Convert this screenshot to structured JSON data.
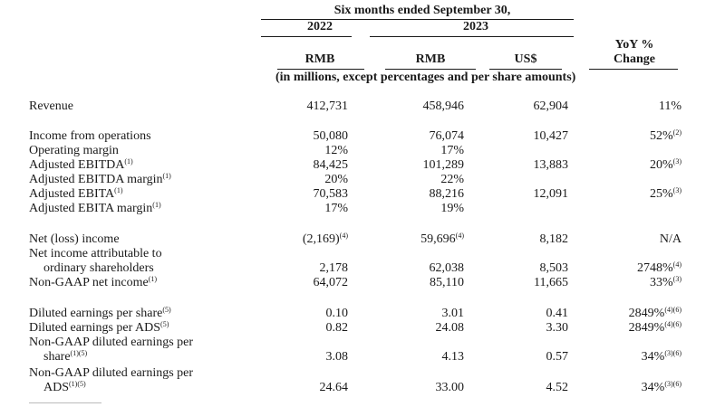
{
  "header": {
    "period_title": "Six months ended September 30,",
    "year_2022": "2022",
    "year_2023": "2023",
    "yoy_line1": "YoY %",
    "yoy_line2": "Change",
    "currency_2022": "RMB",
    "currency_2023": "RMB",
    "currency_usd": "US$",
    "units_note": "(in millions, except percentages and per share amounts)"
  },
  "rows": [
    {
      "label": "Revenue",
      "label_sup": "",
      "v2022": "412,731",
      "v2022_sup": "",
      "v2023": "458,946",
      "v2023_sup": "",
      "usd": "62,904",
      "yoy": "11%",
      "yoy_sup": ""
    },
    {
      "label": "Income from operations",
      "label_sup": "",
      "v2022": "50,080",
      "v2022_sup": "",
      "v2023": "76,074",
      "v2023_sup": "",
      "usd": "10,427",
      "yoy": "52%",
      "yoy_sup": "(2)"
    },
    {
      "label": "Operating margin",
      "label_sup": "",
      "v2022": "12%",
      "v2022_sup": "",
      "v2023": "17%",
      "v2023_sup": "",
      "usd": "",
      "yoy": "",
      "yoy_sup": ""
    },
    {
      "label": "Adjusted EBITDA",
      "label_sup": "(1)",
      "v2022": "84,425",
      "v2022_sup": "",
      "v2023": "101,289",
      "v2023_sup": "",
      "usd": "13,883",
      "yoy": "20%",
      "yoy_sup": "(3)"
    },
    {
      "label": "Adjusted EBITDA margin",
      "label_sup": "(1)",
      "v2022": "20%",
      "v2022_sup": "",
      "v2023": "22%",
      "v2023_sup": "",
      "usd": "",
      "yoy": "",
      "yoy_sup": ""
    },
    {
      "label": "Adjusted EBITA",
      "label_sup": "(1)",
      "v2022": "70,583",
      "v2022_sup": "",
      "v2023": "88,216",
      "v2023_sup": "",
      "usd": "12,091",
      "yoy": "25%",
      "yoy_sup": "(3)"
    },
    {
      "label": "Adjusted EBITA margin",
      "label_sup": "(1)",
      "v2022": "17%",
      "v2022_sup": "",
      "v2023": "19%",
      "v2023_sup": "",
      "usd": "",
      "yoy": "",
      "yoy_sup": ""
    },
    {
      "label": "Net (loss) income",
      "label_sup": "",
      "v2022": "(2,169)",
      "v2022_sup": "(4)",
      "v2023": "59,696",
      "v2023_sup": "(4)",
      "usd": "8,182",
      "yoy": "N/A",
      "yoy_sup": ""
    },
    {
      "label": "Net income attributable to",
      "label_sup": "",
      "v2022": "",
      "v2022_sup": "",
      "v2023": "",
      "v2023_sup": "",
      "usd": "",
      "yoy": "",
      "yoy_sup": ""
    },
    {
      "label": "ordinary shareholders",
      "label_sup": "",
      "v2022": "2,178",
      "v2022_sup": "",
      "v2023": "62,038",
      "v2023_sup": "",
      "usd": "8,503",
      "yoy": "2748%",
      "yoy_sup": "(4)"
    },
    {
      "label": "Non-GAAP net income",
      "label_sup": "(1)",
      "v2022": "64,072",
      "v2022_sup": "",
      "v2023": "85,110",
      "v2023_sup": "",
      "usd": "11,665",
      "yoy": "33%",
      "yoy_sup": "(3)"
    },
    {
      "label": "Diluted earnings per share",
      "label_sup": "(5)",
      "v2022": "0.10",
      "v2022_sup": "",
      "v2023": "3.01",
      "v2023_sup": "",
      "usd": "0.41",
      "yoy": "2849%",
      "yoy_sup": "(4)(6)"
    },
    {
      "label": "Diluted earnings per ADS",
      "label_sup": "(5)",
      "v2022": "0.82",
      "v2022_sup": "",
      "v2023": "24.08",
      "v2023_sup": "",
      "usd": "3.30",
      "yoy": "2849%",
      "yoy_sup": "(4)(6)"
    },
    {
      "label": "Non-GAAP diluted earnings per",
      "label_sup": "",
      "v2022": "",
      "v2022_sup": "",
      "v2023": "",
      "v2023_sup": "",
      "usd": "",
      "yoy": "",
      "yoy_sup": ""
    },
    {
      "label": "share",
      "label_sup": "(1)(5)",
      "v2022": "3.08",
      "v2022_sup": "",
      "v2023": "4.13",
      "v2023_sup": "",
      "usd": "0.57",
      "yoy": "34%",
      "yoy_sup": "(3)(6)"
    },
    {
      "label": "Non-GAAP diluted earnings per",
      "label_sup": "",
      "v2022": "",
      "v2022_sup": "",
      "v2023": "",
      "v2023_sup": "",
      "usd": "",
      "yoy": "",
      "yoy_sup": ""
    },
    {
      "label": "ADS",
      "label_sup": "(1)(5)",
      "v2022": "24.64",
      "v2022_sup": "",
      "v2023": "33.00",
      "v2023_sup": "",
      "usd": "4.52",
      "yoy": "34%",
      "yoy_sup": "(3)(6)"
    }
  ]
}
